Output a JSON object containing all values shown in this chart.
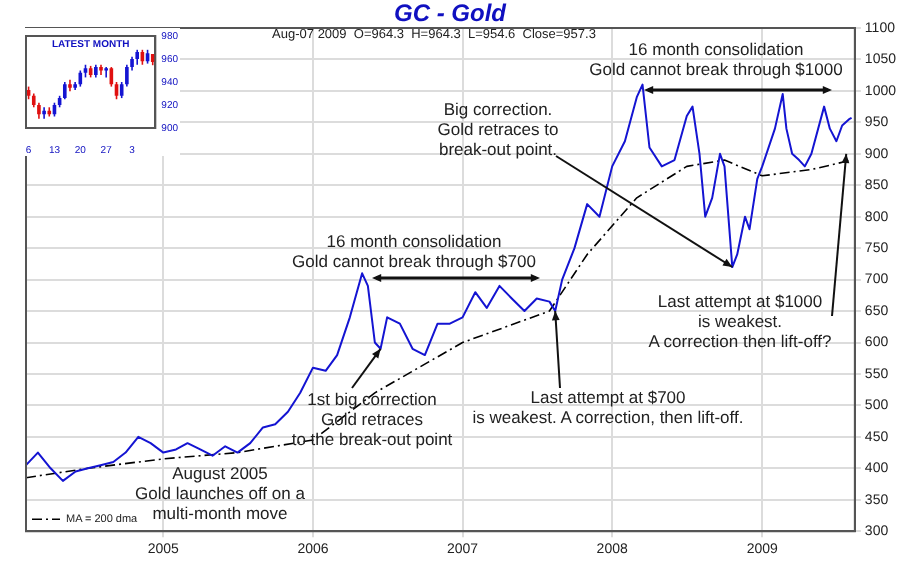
{
  "chart_data": [
    {
      "type": "line",
      "title": "GC - Gold",
      "xlim": [
        "2004-02",
        "2009-08-15"
      ],
      "xticks": [
        {
          "value": "2005",
          "label": "2005"
        },
        {
          "value": "2006",
          "label": "2006"
        },
        {
          "value": "2007",
          "label": "2007"
        },
        {
          "value": "2008",
          "label": "2008"
        },
        {
          "value": "2009",
          "label": "2009"
        }
      ],
      "ylim": [
        300,
        1100
      ],
      "yticks": [
        300,
        350,
        400,
        450,
        500,
        550,
        600,
        650,
        700,
        750,
        800,
        850,
        900,
        950,
        1000,
        1050,
        1100
      ],
      "grid": true,
      "legend": "bottom left",
      "series": [
        {
          "color": "#1414d2",
          "line_style": "solid",
          "x": [
            "2004-02",
            "2004-03",
            "2004-04",
            "2004-05",
            "2004-06",
            "2004-07",
            "2004-08",
            "2004-09",
            "2004-10",
            "2004-11",
            "2004-12",
            "2005-01",
            "2005-02",
            "2005-03",
            "2005-04",
            "2005-05",
            "2005-06",
            "2005-07",
            "2005-08",
            "2005-09",
            "2005-10",
            "2005-11",
            "2005-12",
            "2006-01",
            "2006-02",
            "2006-03",
            "2006-04",
            "2006-05",
            "2006-05-15",
            "2006-06",
            "2006-06-15",
            "2006-07",
            "2006-08",
            "2006-09",
            "2006-10",
            "2006-11",
            "2006-12",
            "2007-01",
            "2007-02",
            "2007-03",
            "2007-04",
            "2007-05",
            "2007-06",
            "2007-07",
            "2007-08",
            "2007-08-15",
            "2007-09",
            "2007-10",
            "2007-11",
            "2007-12",
            "2008-01",
            "2008-02",
            "2008-03",
            "2008-03-15",
            "2008-04",
            "2008-05",
            "2008-06",
            "2008-07",
            "2008-07-15",
            "2008-08",
            "2008-08-15",
            "2008-09",
            "2008-09-20",
            "2008-10",
            "2008-10-20",
            "2008-11",
            "2008-11-20",
            "2008-12",
            "2008-12-20",
            "2009-01",
            "2009-02",
            "2009-02-20",
            "2009-03",
            "2009-03-15",
            "2009-04",
            "2009-04-15",
            "2009-05",
            "2009-06",
            "2009-06-15",
            "2009-07",
            "2009-07-15",
            "2009-08",
            "2009-08-07"
          ],
          "values": [
            405,
            425,
            400,
            380,
            395,
            400,
            405,
            410,
            425,
            450,
            440,
            425,
            430,
            440,
            430,
            420,
            435,
            425,
            440,
            465,
            470,
            490,
            520,
            560,
            555,
            580,
            640,
            710,
            690,
            600,
            590,
            640,
            630,
            590,
            580,
            630,
            630,
            640,
            680,
            655,
            690,
            670,
            650,
            670,
            665,
            650,
            700,
            750,
            820,
            800,
            880,
            920,
            990,
            1010,
            910,
            880,
            890,
            960,
            975,
            900,
            800,
            830,
            900,
            880,
            720,
            740,
            800,
            780,
            860,
            880,
            940,
            995,
            940,
            900,
            890,
            880,
            900,
            975,
            940,
            920,
            945,
            955,
            957
          ]
        },
        {
          "name": "MA = 200 dma",
          "color": "#000000",
          "line_style": "dashed",
          "x": [
            "2004-02",
            "2004-07",
            "2005-01",
            "2005-07",
            "2006-01",
            "2006-06",
            "2007-01",
            "2007-08",
            "2007-11",
            "2008-03",
            "2008-07",
            "2008-10",
            "2009-01",
            "2009-05",
            "2009-08-07"
          ],
          "values": [
            385,
            400,
            415,
            425,
            445,
            520,
            600,
            650,
            740,
            830,
            880,
            890,
            865,
            875,
            890
          ]
        }
      ],
      "annotations": [
        "Aug-07 2009  O=964.3  H=964.3  L=954.6  Close=957.3",
        "16 month consolidation\nGold cannot break through $1000",
        {
          "text": "Big correction.\nGold retraces to\nbreak-out point.",
          "x": "2008-10-20",
          "y": 720
        },
        "16 month consolidation\nGold cannot break through $700",
        {
          "text": "1st big correction\nGold retraces\nto the break-out point",
          "x": "2006-06-15",
          "y": 590
        },
        {
          "text": "Last attempt at $700\nis weakest. A correction, then lift-off.",
          "x": "2007-08-15",
          "y": 650
        },
        {
          "text": "Last attempt at $1000\nis weakest.\nA correction then lift-off?",
          "x": "2009-07-25",
          "y": 900
        },
        "August 2005\nGold launches off on a\nmulti-month move"
      ]
    },
    {
      "type": "candlestick",
      "title": "LATEST MONTH",
      "categories": [
        "6",
        null,
        null,
        null,
        null,
        "13",
        null,
        null,
        null,
        null,
        "20",
        null,
        null,
        null,
        null,
        "27",
        null,
        null,
        null,
        null,
        "3",
        null,
        null,
        null,
        null
      ],
      "ohlc": [
        [
          933,
          936,
          925,
          928
        ],
        [
          928,
          930,
          918,
          920
        ],
        [
          920,
          922,
          908,
          912
        ],
        [
          912,
          918,
          908,
          915
        ],
        [
          915,
          918,
          910,
          912
        ],
        [
          912,
          922,
          910,
          920
        ],
        [
          920,
          928,
          918,
          926
        ],
        [
          926,
          940,
          925,
          938
        ],
        [
          938,
          942,
          932,
          935
        ],
        [
          935,
          940,
          933,
          938
        ],
        [
          938,
          950,
          936,
          948
        ],
        [
          948,
          955,
          944,
          952
        ],
        [
          952,
          954,
          944,
          946
        ],
        [
          946,
          955,
          944,
          953
        ],
        [
          953,
          955,
          946,
          950
        ],
        [
          950,
          953,
          944,
          952
        ],
        [
          952,
          953,
          936,
          938
        ],
        [
          938,
          940,
          925,
          928
        ],
        [
          928,
          940,
          926,
          938
        ],
        [
          938,
          955,
          936,
          953
        ],
        [
          953,
          962,
          950,
          960
        ],
        [
          960,
          968,
          955,
          966
        ],
        [
          966,
          968,
          955,
          958
        ],
        [
          958,
          968,
          956,
          965
        ],
        [
          964.3,
          964.3,
          954.6,
          957.3
        ]
      ],
      "colors": [
        "#e01010",
        "#e01010",
        "#e01010",
        "#1414d2",
        "#e01010",
        "#1414d2",
        "#1414d2",
        "#1414d2",
        "#e01010",
        "#1414d2",
        "#1414d2",
        "#1414d2",
        "#e01010",
        "#1414d2",
        "#e01010",
        "#1414d2",
        "#e01010",
        "#e01010",
        "#1414d2",
        "#1414d2",
        "#1414d2",
        "#1414d2",
        "#e01010",
        "#1414d2",
        "#e01010"
      ],
      "ylim": [
        900,
        980
      ],
      "yticks": [
        900,
        920,
        940,
        960,
        980
      ]
    }
  ]
}
